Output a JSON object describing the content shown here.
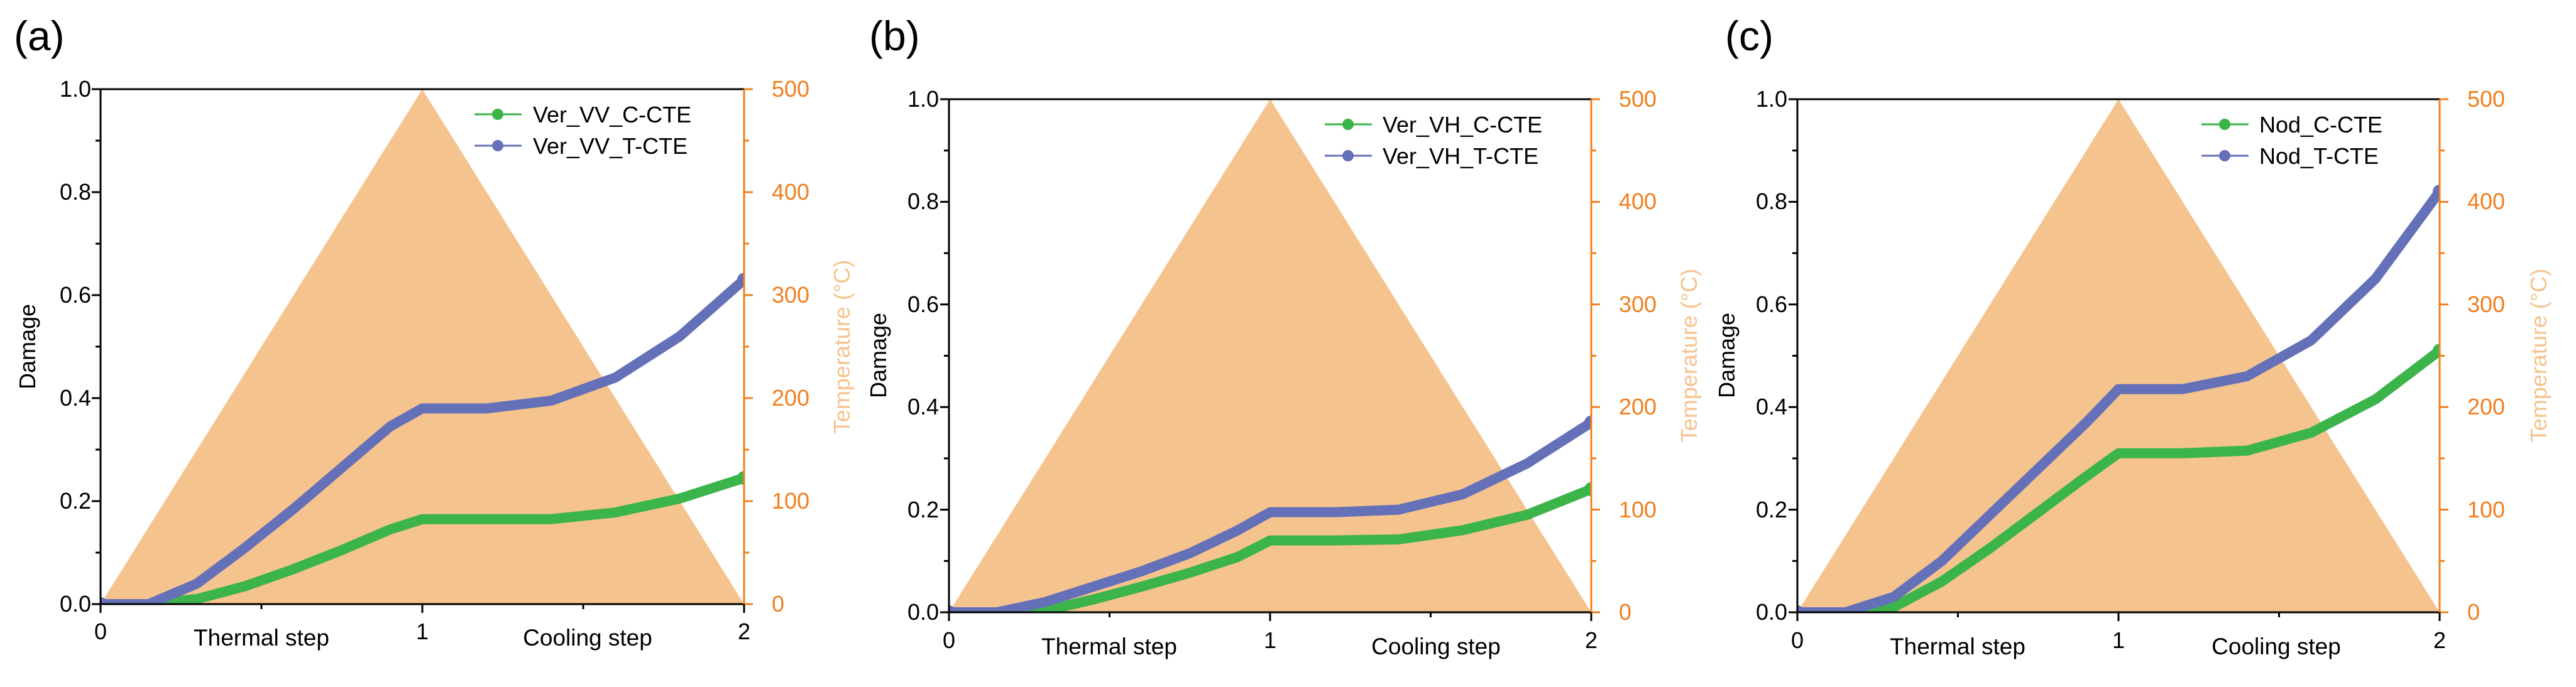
{
  "colors": {
    "temperature": "#f5c38e",
    "temperature_axis": "#f07f1e",
    "c_cte": "#3bb44a",
    "t_cte": "#6470b8",
    "axis": "#000000"
  },
  "chart_data": [
    {
      "type": "line",
      "panel_label": "(a)",
      "ylabel": "Damage",
      "ylabel_right": "Temperature (°C)",
      "ylim": [
        0,
        1.0
      ],
      "ylim_right": [
        0,
        500
      ],
      "xlim": [
        0,
        2
      ],
      "x_ticks": [
        "0",
        "1",
        "2"
      ],
      "y_ticks": [
        "0.0",
        "0.2",
        "0.4",
        "0.6",
        "0.8",
        "1.0"
      ],
      "y_ticks_right": [
        "0",
        "100",
        "200",
        "300",
        "400",
        "500"
      ],
      "step_labels": [
        "Thermal step",
        "Cooling step"
      ],
      "temperature": {
        "x": [
          0,
          1,
          2
        ],
        "values": [
          0,
          500,
          0
        ]
      },
      "series": [
        {
          "name": "Ver_VV_C-CTE",
          "color_key": "c_cte",
          "x": [
            0,
            0.15,
            0.3,
            0.45,
            0.6,
            0.75,
            0.9,
            1.0,
            1.2,
            1.4,
            1.6,
            1.8,
            2.0
          ],
          "values": [
            0,
            0.0,
            0.01,
            0.035,
            0.068,
            0.105,
            0.145,
            0.165,
            0.165,
            0.165,
            0.178,
            0.205,
            0.245
          ]
        },
        {
          "name": "Ver_VV_T-CTE",
          "color_key": "t_cte",
          "x": [
            0,
            0.15,
            0.3,
            0.45,
            0.6,
            0.75,
            0.9,
            1.0,
            1.2,
            1.4,
            1.6,
            1.8,
            2.0
          ],
          "values": [
            0,
            0.0,
            0.04,
            0.11,
            0.185,
            0.265,
            0.345,
            0.38,
            0.38,
            0.395,
            0.44,
            0.52,
            0.63
          ]
        }
      ]
    },
    {
      "type": "line",
      "panel_label": "(b)",
      "ylabel": "Damage",
      "ylabel_right": "Temperature (°C)",
      "ylim": [
        0,
        1.0
      ],
      "ylim_right": [
        0,
        500
      ],
      "xlim": [
        0,
        2
      ],
      "x_ticks": [
        "0",
        "1",
        "2"
      ],
      "y_ticks": [
        "0.0",
        "0.2",
        "0.4",
        "0.6",
        "0.8",
        "1.0"
      ],
      "y_ticks_right": [
        "0",
        "100",
        "200",
        "300",
        "400",
        "500"
      ],
      "step_labels": [
        "Thermal step",
        "Cooling step"
      ],
      "temperature": {
        "x": [
          0,
          1,
          2
        ],
        "values": [
          0,
          500,
          0
        ]
      },
      "series": [
        {
          "name": "Ver_VH_C-CTE",
          "color_key": "c_cte",
          "x": [
            0,
            0.2,
            0.3,
            0.45,
            0.6,
            0.75,
            0.9,
            1.0,
            1.2,
            1.4,
            1.6,
            1.8,
            2.0
          ],
          "values": [
            0,
            0.0,
            0.003,
            0.025,
            0.05,
            0.077,
            0.108,
            0.14,
            0.14,
            0.142,
            0.16,
            0.19,
            0.24
          ]
        },
        {
          "name": "Ver_VH_T-CTE",
          "color_key": "t_cte",
          "x": [
            0,
            0.15,
            0.3,
            0.45,
            0.6,
            0.75,
            0.9,
            1.0,
            1.2,
            1.4,
            1.6,
            1.8,
            2.0
          ],
          "values": [
            0,
            0.0,
            0.02,
            0.05,
            0.08,
            0.115,
            0.16,
            0.195,
            0.195,
            0.2,
            0.23,
            0.29,
            0.37
          ]
        }
      ]
    },
    {
      "type": "line",
      "panel_label": "(c)",
      "ylabel": "Damage",
      "ylabel_right": "Temperature (°C)",
      "ylim": [
        0,
        1.0
      ],
      "ylim_right": [
        0,
        500
      ],
      "xlim": [
        0,
        2
      ],
      "x_ticks": [
        "0",
        "1",
        "2"
      ],
      "y_ticks": [
        "0.0",
        "0.2",
        "0.4",
        "0.6",
        "0.8",
        "1.0"
      ],
      "y_ticks_right": [
        "0",
        "100",
        "200",
        "300",
        "400",
        "500"
      ],
      "step_labels": [
        "Thermal step",
        "Cooling step"
      ],
      "temperature": {
        "x": [
          0,
          1,
          2
        ],
        "values": [
          0,
          500,
          0
        ]
      },
      "series": [
        {
          "name": "Nod_C-CTE",
          "color_key": "c_cte",
          "x": [
            0,
            0.2,
            0.3,
            0.45,
            0.6,
            0.75,
            0.9,
            1.0,
            1.2,
            1.4,
            1.6,
            1.8,
            2.0
          ],
          "values": [
            0,
            0.0,
            0.01,
            0.06,
            0.125,
            0.195,
            0.265,
            0.31,
            0.31,
            0.315,
            0.35,
            0.415,
            0.51
          ]
        },
        {
          "name": "Nod_T-CTE",
          "color_key": "t_cte",
          "x": [
            0,
            0.15,
            0.3,
            0.45,
            0.6,
            0.75,
            0.9,
            1.0,
            1.2,
            1.4,
            1.6,
            1.8,
            2.0
          ],
          "values": [
            0,
            0.0,
            0.03,
            0.1,
            0.19,
            0.28,
            0.37,
            0.435,
            0.435,
            0.46,
            0.53,
            0.65,
            0.82
          ]
        }
      ]
    }
  ]
}
